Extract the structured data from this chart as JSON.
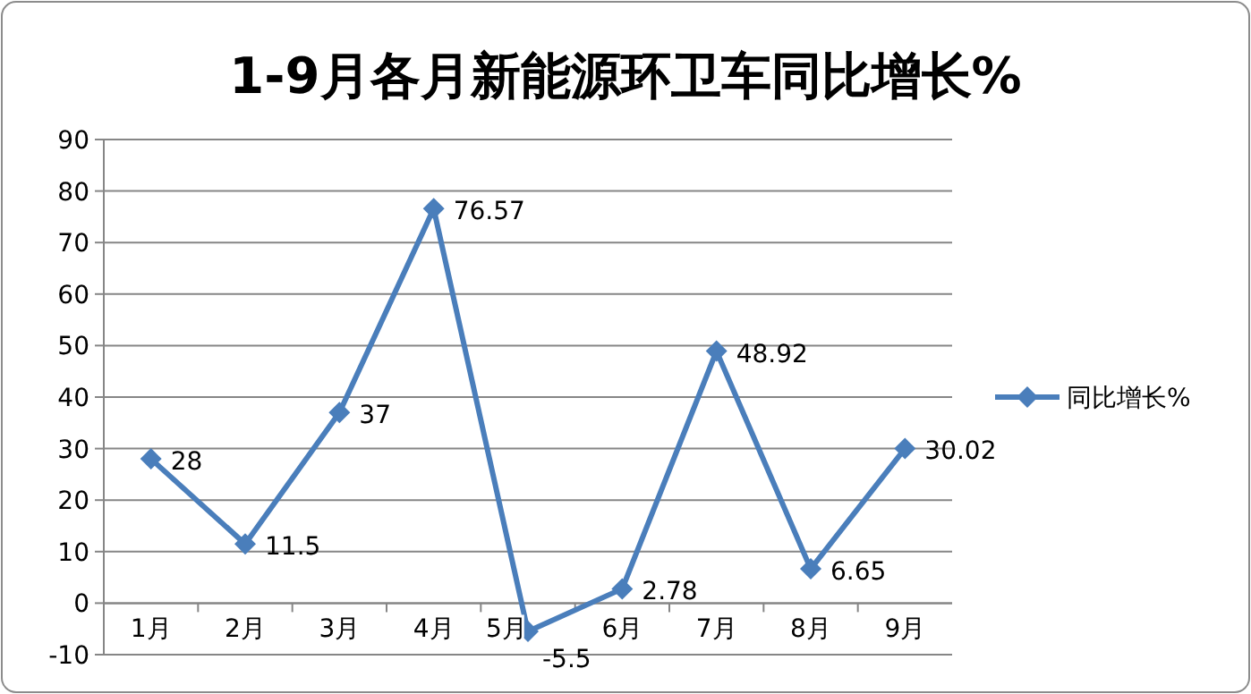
{
  "chart_data": {
    "type": "line",
    "title": "1-9月各月新能源环卫车同比增长%",
    "categories": [
      "1月",
      "2月",
      "3月",
      "4月",
      "5月",
      "6月",
      "7月",
      "8月",
      "9月"
    ],
    "series": [
      {
        "name": "同比增长%",
        "color": "#4a7ebb",
        "values": [
          28,
          11.5,
          37,
          76.57,
          -5.5,
          2.78,
          48.92,
          6.65,
          30.02
        ]
      }
    ],
    "ylim": [
      -10,
      90
    ],
    "yticks": [
      -10,
      0,
      10,
      20,
      30,
      40,
      50,
      60,
      70,
      80,
      90
    ],
    "grid": "y",
    "legend": "right",
    "marker": "diamond",
    "line_style": "solid",
    "data_labels": true
  }
}
